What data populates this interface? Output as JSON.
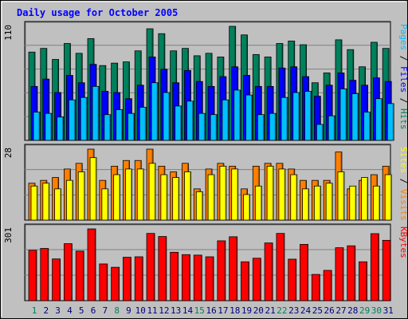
{
  "chart_data": [
    {
      "type": "bar",
      "title": "Daily usage for October 2005",
      "days": [
        "1",
        "2",
        "3",
        "4",
        "5",
        "6",
        "7",
        "8",
        "9",
        "10",
        "11",
        "12",
        "13",
        "14",
        "15",
        "16",
        "17",
        "18",
        "19",
        "20",
        "21",
        "22",
        "23",
        "24",
        "25",
        "26",
        "27",
        "28",
        "29",
        "30",
        "31"
      ],
      "weekend_days": [
        1,
        8,
        15,
        22,
        29,
        30
      ],
      "ymax_label": "110",
      "ylabel_parts": [
        "Pages",
        " / ",
        "Files",
        " / ",
        "Hits"
      ],
      "series": [
        {
          "name": "Hits",
          "color": "#00805c",
          "values": [
            72,
            75,
            66,
            79,
            71,
            83,
            61,
            63,
            64,
            73,
            91,
            87,
            73,
            75,
            69,
            71,
            68,
            93,
            86,
            70,
            68,
            79,
            81,
            78,
            47,
            55,
            82,
            74,
            60,
            80,
            75
          ]
        },
        {
          "name": "Files",
          "color": "#0000ff",
          "values": [
            44,
            50,
            39,
            53,
            47,
            62,
            40,
            39,
            34,
            45,
            68,
            58,
            47,
            57,
            48,
            44,
            52,
            60,
            53,
            44,
            44,
            59,
            60,
            52,
            36,
            45,
            55,
            49,
            45,
            51,
            48
          ]
        },
        {
          "name": "Pages",
          "color": "#00c0ff",
          "values": [
            23,
            22,
            19,
            33,
            35,
            44,
            21,
            25,
            22,
            27,
            47,
            39,
            28,
            32,
            22,
            21,
            33,
            41,
            37,
            21,
            22,
            35,
            39,
            40,
            13,
            20,
            42,
            38,
            23,
            34,
            30
          ]
        }
      ]
    },
    {
      "type": "bar",
      "ymax_label": "28",
      "ylabel_parts": [
        "Sites",
        " / ",
        "Visits"
      ],
      "series": [
        {
          "name": "Visits",
          "color": "#ff8000",
          "values": [
            13,
            14,
            15,
            18,
            20,
            25,
            14,
            19,
            21,
            21,
            25,
            19,
            17,
            20,
            11,
            18,
            20,
            19,
            11,
            19,
            20,
            20,
            18,
            14,
            14,
            14,
            24,
            11,
            14,
            16,
            19
          ]
        },
        {
          "name": "Sites",
          "color": "#ffff00",
          "values": [
            12,
            13,
            11,
            14,
            17,
            22,
            11,
            16,
            18,
            18,
            20,
            16,
            15,
            17,
            10,
            16,
            19,
            18,
            9,
            12,
            19,
            18,
            16,
            11,
            12,
            13,
            17,
            12,
            15,
            12,
            16
          ]
        }
      ]
    },
    {
      "type": "bar",
      "ymax_label": "301",
      "ylabel_parts": [
        "KBytes"
      ],
      "series": [
        {
          "name": "KBytes",
          "color": "#ff0000",
          "values": [
            211,
            219,
            175,
            239,
            208,
            301,
            154,
            140,
            182,
            184,
            282,
            269,
            203,
            193,
            191,
            184,
            251,
            268,
            163,
            178,
            242,
            282,
            174,
            236,
            110,
            127,
            222,
            230,
            163,
            281,
            253
          ]
        }
      ]
    }
  ],
  "colors": {
    "title": "#0000ff",
    "background": "#c0c0c0",
    "weekday_label": "#000080",
    "weekend_label": "#00805c"
  }
}
